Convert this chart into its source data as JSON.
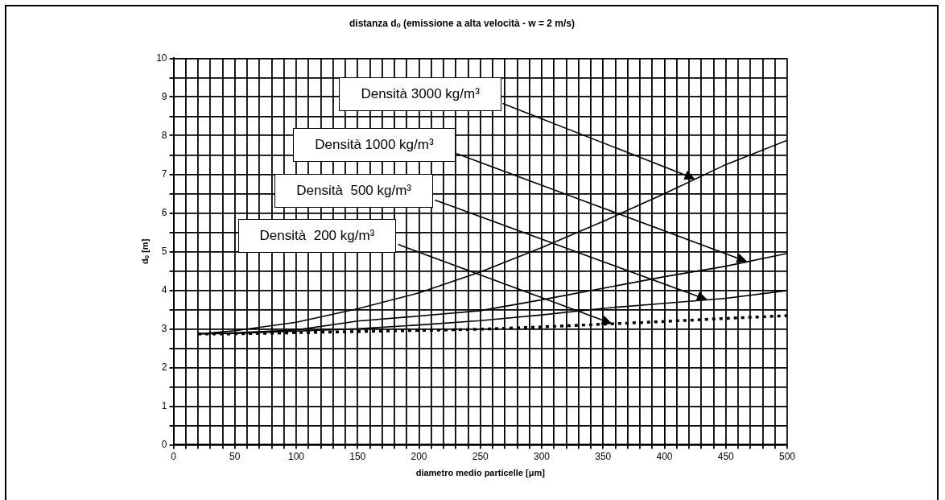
{
  "chart_data": {
    "type": "line",
    "title": "distanza dₒ (emissione a alta velocità - w = 2 m/s)",
    "xlabel": "diametro medio particelle [μm]",
    "ylabel": "dₒ [m]",
    "x": [
      20,
      50,
      100,
      150,
      200,
      250,
      300,
      350,
      400,
      450,
      500
    ],
    "series": [
      {
        "name": "Densità 3000 kg/m³",
        "color": "#000000",
        "values": [
          2.87,
          2.95,
          3.17,
          3.52,
          3.93,
          4.47,
          5.1,
          5.78,
          6.5,
          7.25,
          7.88
        ]
      },
      {
        "name": "Densità 1000 kg/m³",
        "color": "#000000",
        "values": [
          2.87,
          2.9,
          2.97,
          3.2,
          3.33,
          3.47,
          3.75,
          4.05,
          4.35,
          4.62,
          4.95
        ]
      },
      {
        "name": "Densità  500 kg/m³",
        "color": "#000000",
        "values": [
          2.87,
          2.88,
          2.94,
          3.0,
          3.1,
          3.21,
          3.36,
          3.53,
          3.66,
          3.79,
          3.99
        ]
      },
      {
        "name": "Densità  200 kg/m³",
        "color": "#000000",
        "values": [
          2.87,
          2.87,
          2.9,
          2.93,
          2.96,
          2.99,
          3.05,
          3.12,
          3.19,
          3.27,
          3.34
        ],
        "line_style": "dotted"
      }
    ],
    "xlim": [
      0,
      500
    ],
    "xticks": [
      0,
      {
        "value": 10,
        "label": null
      },
      {
        "value": 20,
        "label": null
      },
      {
        "value": 30,
        "label": null
      },
      {
        "value": 40,
        "label": null
      },
      50,
      {
        "value": 60,
        "label": null
      },
      {
        "value": 70,
        "label": null
      },
      {
        "value": 80,
        "label": null
      },
      {
        "value": 90,
        "label": null
      },
      100,
      {
        "value": 110,
        "label": null
      },
      {
        "value": 120,
        "label": null
      },
      {
        "value": 130,
        "label": null
      },
      {
        "value": 140,
        "label": null
      },
      150,
      {
        "value": 160,
        "label": null
      },
      {
        "value": 170,
        "label": null
      },
      {
        "value": 180,
        "label": null
      },
      {
        "value": 190,
        "label": null
      },
      200,
      {
        "value": 210,
        "label": null
      },
      {
        "value": 220,
        "label": null
      },
      {
        "value": 230,
        "label": null
      },
      {
        "value": 240,
        "label": null
      },
      250,
      {
        "value": 260,
        "label": null
      },
      {
        "value": 270,
        "label": null
      },
      {
        "value": 280,
        "label": null
      },
      {
        "value": 290,
        "label": null
      },
      300,
      {
        "value": 310,
        "label": null
      },
      {
        "value": 320,
        "label": null
      },
      {
        "value": 330,
        "label": null
      },
      {
        "value": 340,
        "label": null
      },
      350,
      {
        "value": 360,
        "label": null
      },
      {
        "value": 370,
        "label": null
      },
      {
        "value": 380,
        "label": null
      },
      {
        "value": 390,
        "label": null
      },
      400,
      {
        "value": 410,
        "label": null
      },
      {
        "value": 420,
        "label": null
      },
      {
        "value": 430,
        "label": null
      },
      {
        "value": 440,
        "label": null
      },
      450,
      {
        "value": 460,
        "label": null
      },
      {
        "value": 470,
        "label": null
      },
      {
        "value": 480,
        "label": null
      },
      {
        "value": 490,
        "label": null
      },
      500
    ],
    "ylim": [
      0,
      10
    ],
    "yticks": [
      0,
      {
        "value": 0.5,
        "label": null
      },
      1,
      {
        "value": 1.5,
        "label": null
      },
      2,
      {
        "value": 2.5,
        "label": null
      },
      3,
      {
        "value": 3.5,
        "label": null
      },
      4,
      {
        "value": 4.5,
        "label": null
      },
      5,
      {
        "value": 5.5,
        "label": null
      },
      6,
      {
        "value": 6.5,
        "label": null
      },
      7,
      {
        "value": 7.5,
        "label": null
      },
      8,
      {
        "value": 8.5,
        "label": null
      },
      9,
      {
        "value": 9.5,
        "label": null
      },
      10
    ],
    "grid": true,
    "legend": false,
    "marker": "none",
    "line_style": "solid"
  }
}
